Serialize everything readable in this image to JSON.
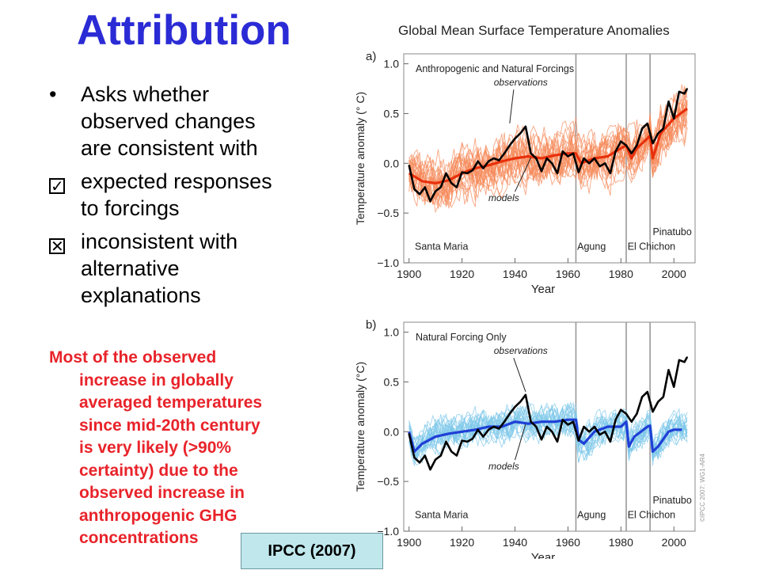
{
  "slide": {
    "title": "Attribution",
    "bullet_main": [
      "Asks whether",
      "observed changes",
      "are consistent with"
    ],
    "bullet_check": [
      "expected responses",
      "to forcings"
    ],
    "bullet_x": [
      "inconsistent with",
      "alternative",
      "explanations"
    ],
    "conclusion_lines": [
      "Most of the observed",
      "increase in globally",
      "averaged temperatures",
      "since mid-20th century",
      "is very likely (>90%",
      "certainty) due to the",
      "observed increase in",
      "anthropogenic GHG",
      "concentrations"
    ],
    "source": "IPCC (2007)",
    "title_color": "#2b2bd6",
    "conclusion_color": "#e8232a",
    "source_bg": "#bfe7ec"
  },
  "chart_data": [
    {
      "type": "line",
      "figure_title": "Global Mean Surface Temperature Anomalies",
      "panel": "a)",
      "title": "Anthropogenic and Natural Forcings",
      "xlabel": "Year",
      "ylabel": "Temperature anomaly (° C)",
      "xlim": [
        1898,
        2008
      ],
      "ylim": [
        -1.0,
        1.1
      ],
      "xticks": [
        1900,
        1920,
        1940,
        1960,
        1980,
        2000
      ],
      "yticks": [
        -1.0,
        -0.5,
        0.0,
        0.5,
        1.0
      ],
      "ytick_labels": [
        "−1.0",
        "−0.5",
        "0.0",
        "0.5",
        "1.0"
      ],
      "volcanoes": [
        {
          "name": "Santa Maria",
          "year": 1902
        },
        {
          "name": "Agung",
          "year": 1963
        },
        {
          "name": "El Chichon",
          "year": 1982
        },
        {
          "name": "Pinatubo",
          "year": 1991
        }
      ],
      "annotations": [
        "observations",
        "models"
      ],
      "series": [
        {
          "name": "observations",
          "color": "#000000",
          "x": [
            1900,
            1902,
            1904,
            1906,
            1908,
            1910,
            1912,
            1914,
            1916,
            1918,
            1920,
            1922,
            1924,
            1926,
            1928,
            1930,
            1932,
            1934,
            1936,
            1938,
            1940,
            1942,
            1944,
            1946,
            1948,
            1950,
            1952,
            1954,
            1956,
            1958,
            1960,
            1962,
            1964,
            1966,
            1968,
            1970,
            1972,
            1974,
            1976,
            1978,
            1980,
            1982,
            1984,
            1986,
            1988,
            1990,
            1992,
            1994,
            1996,
            1998,
            2000,
            2002,
            2004,
            2005
          ],
          "y": [
            -0.02,
            -0.26,
            -0.31,
            -0.24,
            -0.38,
            -0.28,
            -0.24,
            -0.1,
            -0.2,
            -0.24,
            -0.09,
            -0.1,
            -0.07,
            0.02,
            -0.05,
            0.02,
            0.05,
            0.03,
            0.1,
            0.18,
            0.25,
            0.3,
            0.37,
            0.1,
            0.05,
            -0.08,
            0.05,
            0.0,
            -0.1,
            0.12,
            0.07,
            0.1,
            -0.09,
            0.05,
            0.0,
            0.05,
            -0.03,
            0.0,
            -0.1,
            0.12,
            0.22,
            0.18,
            0.1,
            0.18,
            0.35,
            0.4,
            0.2,
            0.3,
            0.35,
            0.62,
            0.45,
            0.72,
            0.7,
            0.75
          ]
        },
        {
          "name": "models",
          "color": "#e8300c",
          "x": [
            1900,
            1905,
            1910,
            1915,
            1920,
            1925,
            1930,
            1935,
            1940,
            1945,
            1950,
            1955,
            1960,
            1963,
            1965,
            1970,
            1975,
            1980,
            1982,
            1984,
            1986,
            1990,
            1991,
            1992,
            1995,
            2000,
            2005
          ],
          "y": [
            -0.1,
            -0.18,
            -0.2,
            -0.17,
            -0.1,
            -0.05,
            -0.02,
            0.02,
            0.05,
            0.07,
            0.05,
            0.08,
            0.1,
            0.1,
            0.0,
            0.05,
            0.07,
            0.15,
            0.18,
            0.05,
            0.15,
            0.25,
            0.28,
            0.05,
            0.3,
            0.45,
            0.55
          ]
        }
      ]
    },
    {
      "type": "line",
      "panel": "b)",
      "title": "Natural Forcing Only",
      "xlabel": "Year",
      "ylabel": "Temperature anomaly (°C)",
      "xlim": [
        1898,
        2008
      ],
      "ylim": [
        -1.0,
        1.1
      ],
      "xticks": [
        1900,
        1920,
        1940,
        1960,
        1980,
        2000
      ],
      "yticks": [
        -1.0,
        -0.5,
        0.0,
        0.5,
        1.0
      ],
      "ytick_labels": [
        "−1.0",
        "−0.5",
        "0.0",
        "0.5",
        "1.0"
      ],
      "volcanoes": [
        {
          "name": "Santa Maria",
          "year": 1902
        },
        {
          "name": "Agung",
          "year": 1963
        },
        {
          "name": "El Chichon",
          "year": 1982
        },
        {
          "name": "Pinatubo",
          "year": 1991
        }
      ],
      "annotations": [
        "observations",
        "models"
      ],
      "watermark": "©IPCC 2007: WG1-AR4",
      "series": [
        {
          "name": "observations",
          "color": "#000000",
          "x": [
            1900,
            1902,
            1904,
            1906,
            1908,
            1910,
            1912,
            1914,
            1916,
            1918,
            1920,
            1922,
            1924,
            1926,
            1928,
            1930,
            1932,
            1934,
            1936,
            1938,
            1940,
            1942,
            1944,
            1946,
            1948,
            1950,
            1952,
            1954,
            1956,
            1958,
            1960,
            1962,
            1964,
            1966,
            1968,
            1970,
            1972,
            1974,
            1976,
            1978,
            1980,
            1982,
            1984,
            1986,
            1988,
            1990,
            1992,
            1994,
            1996,
            1998,
            2000,
            2002,
            2004,
            2005
          ],
          "y": [
            -0.02,
            -0.26,
            -0.31,
            -0.24,
            -0.38,
            -0.28,
            -0.24,
            -0.1,
            -0.2,
            -0.24,
            -0.09,
            -0.1,
            -0.07,
            0.02,
            -0.05,
            0.02,
            0.05,
            0.03,
            0.1,
            0.18,
            0.25,
            0.3,
            0.37,
            0.1,
            0.05,
            -0.08,
            0.05,
            0.0,
            -0.1,
            0.12,
            0.07,
            0.1,
            -0.09,
            0.05,
            0.0,
            0.05,
            -0.03,
            0.0,
            -0.1,
            0.12,
            0.22,
            0.18,
            0.1,
            0.18,
            0.35,
            0.4,
            0.2,
            0.3,
            0.35,
            0.62,
            0.45,
            0.72,
            0.7,
            0.75
          ]
        },
        {
          "name": "models",
          "color": "#1f3fd6",
          "x": [
            1900,
            1902,
            1905,
            1910,
            1915,
            1920,
            1925,
            1930,
            1935,
            1940,
            1945,
            1950,
            1955,
            1960,
            1963,
            1964,
            1966,
            1970,
            1975,
            1980,
            1982,
            1983,
            1985,
            1990,
            1991,
            1992,
            1994,
            1998,
            2000,
            2003
          ],
          "y": [
            0.0,
            -0.2,
            -0.12,
            -0.05,
            -0.02,
            0.0,
            0.02,
            0.05,
            0.05,
            0.1,
            0.08,
            0.1,
            0.1,
            0.12,
            0.12,
            -0.08,
            -0.12,
            0.0,
            0.05,
            0.05,
            0.1,
            -0.15,
            -0.05,
            0.05,
            0.06,
            -0.2,
            -0.15,
            0.0,
            0.02,
            0.02
          ]
        }
      ]
    }
  ]
}
